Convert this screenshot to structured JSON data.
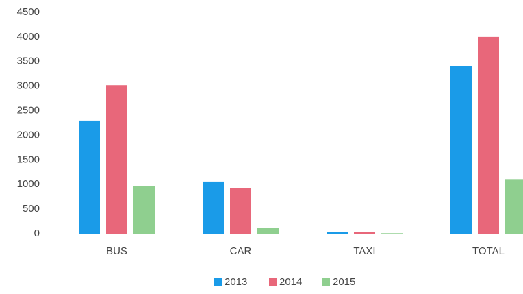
{
  "chart_data": {
    "type": "bar",
    "categories": [
      "BUS",
      "CAR",
      "TAXI",
      "TOTAL"
    ],
    "series": [
      {
        "name": "2013",
        "color": "#1a9be8",
        "values": [
          2300,
          1060,
          40,
          3400
        ]
      },
      {
        "name": "2014",
        "color": "#e8677a",
        "values": [
          3020,
          920,
          40,
          4000
        ]
      },
      {
        "name": "2015",
        "color": "#8fcf8f",
        "values": [
          970,
          125,
          10,
          1110
        ]
      }
    ],
    "ylim": [
      0,
      4500
    ],
    "yticks": [
      0,
      500,
      1000,
      1500,
      2000,
      2500,
      3000,
      3500,
      4000,
      4500
    ],
    "grid": false,
    "legend": "bottom"
  }
}
